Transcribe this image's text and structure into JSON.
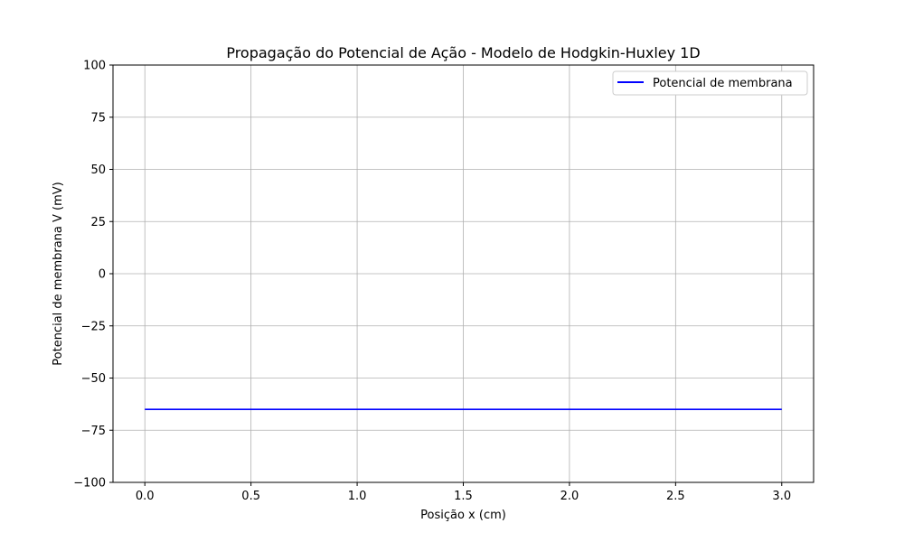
{
  "chart_data": {
    "type": "line",
    "title": "Propagação do Potencial de Ação - Modelo de Hodgkin-Huxley 1D",
    "xlabel": "Posição x (cm)",
    "ylabel": "Potencial de membrana V (mV)",
    "xlim": [
      -0.15,
      3.15
    ],
    "ylim": [
      -100,
      100
    ],
    "xticks": [
      0.0,
      0.5,
      1.0,
      1.5,
      2.0,
      2.5,
      3.0
    ],
    "xtick_labels": [
      "0.0",
      "0.5",
      "1.0",
      "1.5",
      "2.0",
      "2.5",
      "3.0"
    ],
    "yticks": [
      -100,
      -75,
      -50,
      -25,
      0,
      25,
      50,
      75,
      100
    ],
    "ytick_labels": [
      "−100",
      "−75",
      "−50",
      "−25",
      "0",
      "25",
      "50",
      "75",
      "100"
    ],
    "grid": true,
    "legend_position": "top-right",
    "series": [
      {
        "name": "Potencial de membrana",
        "color": "#0000ff",
        "x": [
          0.0,
          0.5,
          1.0,
          1.5,
          2.0,
          2.5,
          3.0
        ],
        "y": [
          -65,
          -65,
          -65,
          -65,
          -65,
          -65,
          -65
        ]
      }
    ]
  }
}
